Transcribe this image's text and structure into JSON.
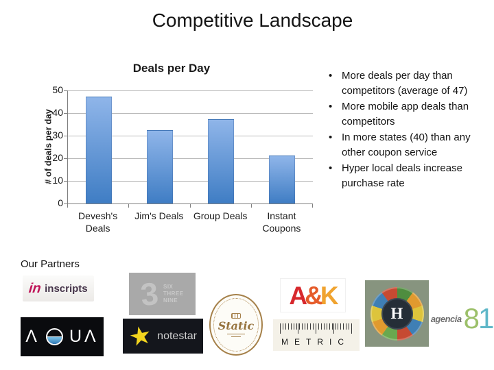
{
  "slide": {
    "title": "Competitive Landscape"
  },
  "chart_data": {
    "type": "bar",
    "title": "Deals per Day",
    "ylabel": "# of deals per day",
    "xlabel": "",
    "categories": [
      "Devesh's Deals",
      "Jim's Deals",
      "Group Deals",
      "Instant Coupons"
    ],
    "values": [
      47,
      32,
      37,
      21
    ],
    "ylim": [
      0,
      50
    ],
    "ytick_step": 10,
    "grid": true,
    "legend": "none",
    "bar_color_top": "#8fb5e9",
    "bar_color_bottom": "#3f7dc4"
  },
  "bullets": {
    "items": [
      "More deals per day than competitors (average of 47)",
      "More mobile app deals than competitors",
      "In more states (40) than any other coupon service",
      "Hyper local deals increase purchase rate"
    ]
  },
  "partners": {
    "heading": "Our Partners",
    "logos": [
      {
        "id": "inscripts",
        "icon_text": "in",
        "label": "inscripts"
      },
      {
        "id": "six-three-nine",
        "numeral": "3",
        "lines": [
          "SIX",
          "THREE",
          "NINE"
        ]
      },
      {
        "id": "aqua",
        "text": "AQUA",
        "letter_left": "Λ",
        "letters_right": "UΛ"
      },
      {
        "id": "notestar",
        "star": "★",
        "label": "notestar"
      },
      {
        "id": "static",
        "label": "Static"
      },
      {
        "id": "ak",
        "letters": [
          "A",
          "&",
          "K"
        ]
      },
      {
        "id": "metric",
        "label": "METRIC"
      },
      {
        "id": "h-partner",
        "letter": "H"
      },
      {
        "id": "agencia81",
        "label": "agencia",
        "digit_8": "8",
        "digit_1": "1"
      }
    ]
  }
}
